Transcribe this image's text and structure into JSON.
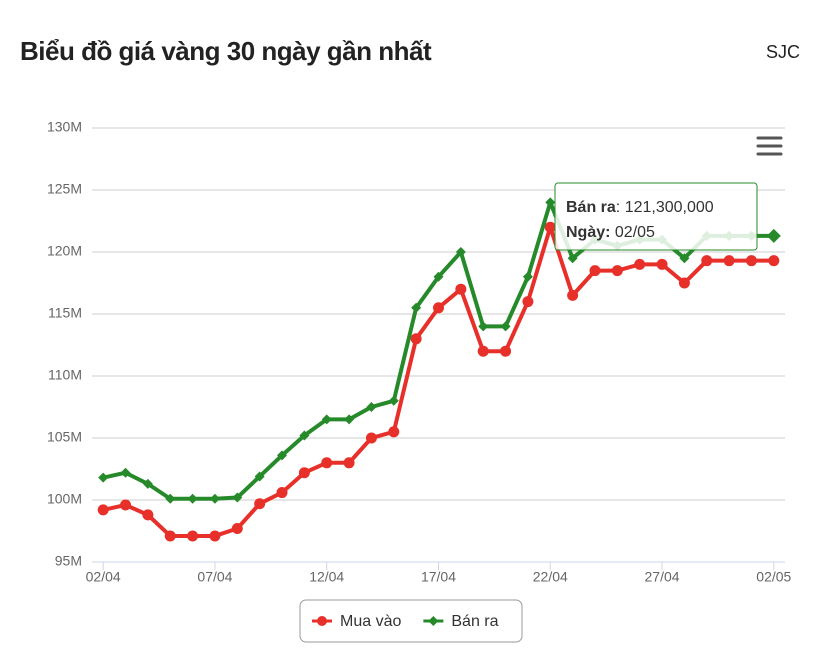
{
  "header": {
    "title": "Biểu đồ giá vàng 30 ngày gần nhất",
    "brand": "SJC"
  },
  "chart_data": {
    "type": "line",
    "categories": [
      "02/04",
      null,
      null,
      null,
      null,
      "07/04",
      null,
      null,
      null,
      null,
      "12/04",
      null,
      null,
      null,
      null,
      "17/04",
      null,
      null,
      null,
      null,
      "22/04",
      null,
      null,
      null,
      null,
      "27/04",
      null,
      null,
      null,
      null,
      "02/05"
    ],
    "series": [
      {
        "name": "Mua vào",
        "color": "#e8302a",
        "marker": "circle",
        "values": [
          99.2,
          99.6,
          98.8,
          97.1,
          97.1,
          97.1,
          97.7,
          99.7,
          100.6,
          102.2,
          103,
          103,
          105,
          105.5,
          113,
          115.5,
          117,
          112,
          112,
          116,
          122,
          116.5,
          118.5,
          118.5,
          119,
          119,
          117.5,
          119.3,
          119.3,
          119.3,
          119.3
        ]
      },
      {
        "name": "Bán ra",
        "color": "#268a2a",
        "marker": "diamond",
        "values": [
          101.8,
          102.2,
          101.3,
          100.1,
          100.1,
          100.1,
          100.2,
          101.9,
          103.6,
          105.2,
          106.5,
          106.5,
          107.5,
          108,
          115.5,
          118,
          120,
          114,
          114,
          118,
          124,
          119.5,
          121,
          120.5,
          121,
          121,
          119.5,
          121.3,
          121.3,
          121.3,
          121.3
        ]
      }
    ],
    "ylim": [
      95,
      130
    ],
    "yticks": [
      {
        "value": 95,
        "label": "95M"
      },
      {
        "value": 100,
        "label": "100M"
      },
      {
        "value": 105,
        "label": "105M"
      },
      {
        "value": 110,
        "label": "110M"
      },
      {
        "value": 115,
        "label": "115M"
      },
      {
        "value": 120,
        "label": "120M"
      },
      {
        "value": 125,
        "label": "125M"
      },
      {
        "value": 130,
        "label": "130M"
      }
    ],
    "grid": true,
    "legend": "bottom",
    "tooltip": {
      "series_label": "Bán ra",
      "value_text": ": 121,300,000",
      "date_label": "Ngày:",
      "date_text": " 02/05"
    }
  }
}
